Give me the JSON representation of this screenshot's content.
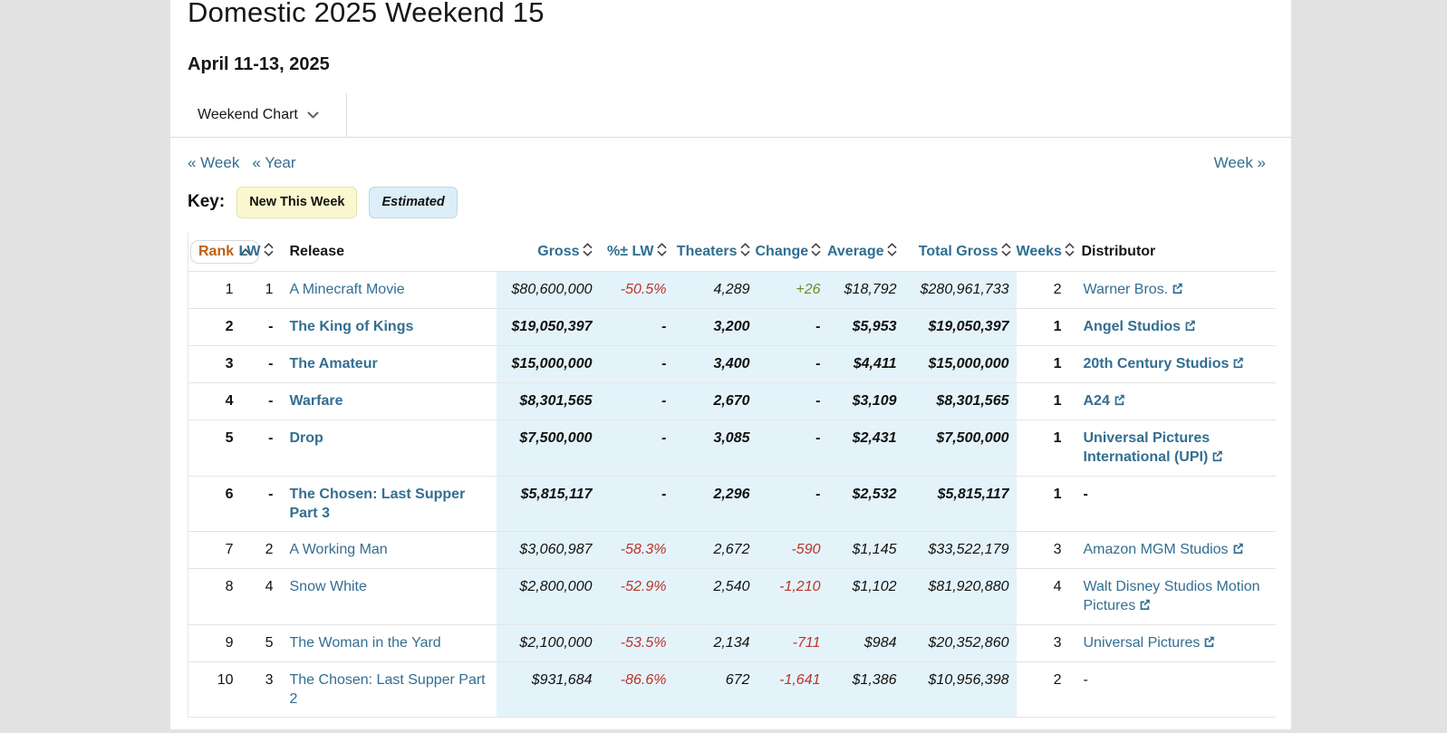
{
  "page": {
    "title": "Domestic 2025 Weekend 15",
    "date_range": "April 11-13, 2025",
    "chart_selector": {
      "label": "Weekend Chart",
      "icon": "chevron-down-icon"
    },
    "nav": {
      "prev_week": "« Week",
      "prev_year": "« Year",
      "next_week": "Week »"
    },
    "key": {
      "label": "Key:",
      "badges": [
        {
          "label": "New This Week",
          "color": "#fbf8cf"
        },
        {
          "label": "Estimated",
          "color": "#ddeef8"
        }
      ]
    }
  },
  "table": {
    "columns": [
      {
        "key": "rank",
        "label": "Rank",
        "sort": "asc",
        "align": "right",
        "estimated": false
      },
      {
        "key": "lw",
        "label": "LW",
        "sort": "both",
        "align": "right",
        "estimated": false
      },
      {
        "key": "release",
        "label": "Release",
        "sort": "none",
        "align": "left",
        "estimated": false
      },
      {
        "key": "gross",
        "label": "Gross",
        "sort": "both",
        "align": "right",
        "estimated": true
      },
      {
        "key": "pct_lw",
        "label": "%± LW",
        "sort": "both",
        "align": "right",
        "estimated": true
      },
      {
        "key": "theaters",
        "label": "Theaters",
        "sort": "both",
        "align": "right",
        "estimated": true
      },
      {
        "key": "change",
        "label": "Change",
        "sort": "both",
        "align": "right",
        "estimated": true
      },
      {
        "key": "average",
        "label": "Average",
        "sort": "both",
        "align": "right",
        "estimated": true
      },
      {
        "key": "total_gross",
        "label": "Total Gross",
        "sort": "both",
        "align": "right",
        "estimated": true
      },
      {
        "key": "weeks",
        "label": "Weeks",
        "sort": "both",
        "align": "right",
        "estimated": false
      },
      {
        "key": "distributor",
        "label": "Distributor",
        "sort": "none",
        "align": "left",
        "estimated": false
      }
    ],
    "rows": [
      {
        "rank": "1",
        "lw": "1",
        "release": "A Minecraft Movie",
        "gross": "$80,600,000",
        "pct_lw": "-50.5%",
        "theaters": "4,289",
        "change": "+26",
        "average": "$18,792",
        "total_gross": "$280,961,733",
        "weeks": "2",
        "distributor": "Warner Bros.",
        "distributor_link": true,
        "new_this_week": false
      },
      {
        "rank": "2",
        "lw": "-",
        "release": "The King of Kings",
        "gross": "$19,050,397",
        "pct_lw": "-",
        "theaters": "3,200",
        "change": "-",
        "average": "$5,953",
        "total_gross": "$19,050,397",
        "weeks": "1",
        "distributor": "Angel Studios",
        "distributor_link": true,
        "new_this_week": true
      },
      {
        "rank": "3",
        "lw": "-",
        "release": "The Amateur",
        "gross": "$15,000,000",
        "pct_lw": "-",
        "theaters": "3,400",
        "change": "-",
        "average": "$4,411",
        "total_gross": "$15,000,000",
        "weeks": "1",
        "distributor": "20th Century Studios",
        "distributor_link": true,
        "new_this_week": true
      },
      {
        "rank": "4",
        "lw": "-",
        "release": "Warfare",
        "gross": "$8,301,565",
        "pct_lw": "-",
        "theaters": "2,670",
        "change": "-",
        "average": "$3,109",
        "total_gross": "$8,301,565",
        "weeks": "1",
        "distributor": "A24",
        "distributor_link": true,
        "new_this_week": true
      },
      {
        "rank": "5",
        "lw": "-",
        "release": "Drop",
        "gross": "$7,500,000",
        "pct_lw": "-",
        "theaters": "3,085",
        "change": "-",
        "average": "$2,431",
        "total_gross": "$7,500,000",
        "weeks": "1",
        "distributor": "Universal Pictures International (UPI)",
        "distributor_link": true,
        "new_this_week": true
      },
      {
        "rank": "6",
        "lw": "-",
        "release": "The Chosen: Last Supper Part 3",
        "gross": "$5,815,117",
        "pct_lw": "-",
        "theaters": "2,296",
        "change": "-",
        "average": "$2,532",
        "total_gross": "$5,815,117",
        "weeks": "1",
        "distributor": "-",
        "distributor_link": false,
        "new_this_week": true
      },
      {
        "rank": "7",
        "lw": "2",
        "release": "A Working Man",
        "gross": "$3,060,987",
        "pct_lw": "-58.3%",
        "theaters": "2,672",
        "change": "-590",
        "average": "$1,145",
        "total_gross": "$33,522,179",
        "weeks": "3",
        "distributor": "Amazon MGM Studios",
        "distributor_link": true,
        "new_this_week": false
      },
      {
        "rank": "8",
        "lw": "4",
        "release": "Snow White",
        "gross": "$2,800,000",
        "pct_lw": "-52.9%",
        "theaters": "2,540",
        "change": "-1,210",
        "average": "$1,102",
        "total_gross": "$81,920,880",
        "weeks": "4",
        "distributor": "Walt Disney Studios Motion Pictures",
        "distributor_link": true,
        "new_this_week": false
      },
      {
        "rank": "9",
        "lw": "5",
        "release": "The Woman in the Yard",
        "gross": "$2,100,000",
        "pct_lw": "-53.5%",
        "theaters": "2,134",
        "change": "-711",
        "average": "$984",
        "total_gross": "$20,352,860",
        "weeks": "3",
        "distributor": "Universal Pictures",
        "distributor_link": true,
        "new_this_week": false
      },
      {
        "rank": "10",
        "lw": "3",
        "release": "The Chosen: Last Supper Part 2",
        "gross": "$931,684",
        "pct_lw": "-86.6%",
        "theaters": "672",
        "change": "-1,641",
        "average": "$1,386",
        "total_gross": "$10,956,398",
        "weeks": "2",
        "distributor": "-",
        "distributor_link": false,
        "new_this_week": false
      }
    ]
  },
  "icons": {
    "dropdown": "chevron-down-icon",
    "sort_ascending": "caret-up-icon",
    "sort_both": "sort-up-down-icon",
    "external": "external-link-icon"
  },
  "colors": {
    "link_blue": "#336e91",
    "header_blue": "#2e6e91",
    "rank_sort_orange": "#c05f10",
    "negative_red": "#ba342b",
    "positive_green": "#728a2a",
    "estimated_bg": "#e4f3fa",
    "page_gray": "#e2e2e2"
  }
}
